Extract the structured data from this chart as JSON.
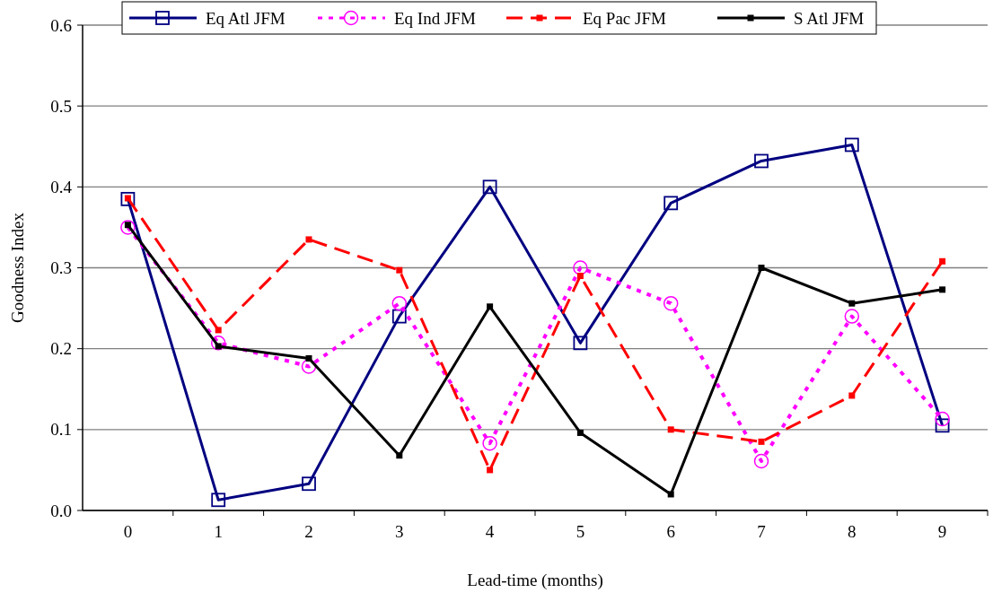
{
  "chart_data": {
    "type": "line",
    "xlabel": "Lead-time (months)",
    "ylabel": "Goodness Index",
    "categories": [
      "0",
      "1",
      "2",
      "3",
      "4",
      "5",
      "6",
      "7",
      "8",
      "9"
    ],
    "series": [
      {
        "name": "Eq Atl JFM",
        "color": "#000080",
        "marker": "square",
        "line_style": "solid",
        "values": [
          0.385,
          0.013,
          0.033,
          0.24,
          0.4,
          0.207,
          0.38,
          0.432,
          0.452,
          0.105
        ]
      },
      {
        "name": "Eq Ind JFM",
        "color": "#ff00ff",
        "marker": "circle",
        "line_style": "dotted",
        "values": [
          0.35,
          0.207,
          0.178,
          0.256,
          0.083,
          0.3,
          0.256,
          0.061,
          0.24,
          0.113
        ]
      },
      {
        "name": "Eq Pac JFM",
        "color": "#ff0000",
        "marker": "square",
        "line_style": "dashed",
        "values": [
          0.386,
          0.223,
          0.335,
          0.297,
          0.05,
          0.29,
          0.1,
          0.085,
          0.142,
          0.308
        ]
      },
      {
        "name": "S Atl JFM",
        "color": "#000000",
        "marker": "square",
        "line_style": "solid",
        "values": [
          0.353,
          0.203,
          0.188,
          0.068,
          0.252,
          0.096,
          0.02,
          0.3,
          0.256,
          0.273
        ]
      }
    ],
    "ylim": [
      0,
      0.6
    ],
    "yticks": [
      {
        "value": 0,
        "label": "0.0"
      },
      0.1,
      0.2,
      0.3,
      0.4,
      0.5,
      0.6
    ],
    "grid": "y",
    "legend": "top"
  }
}
